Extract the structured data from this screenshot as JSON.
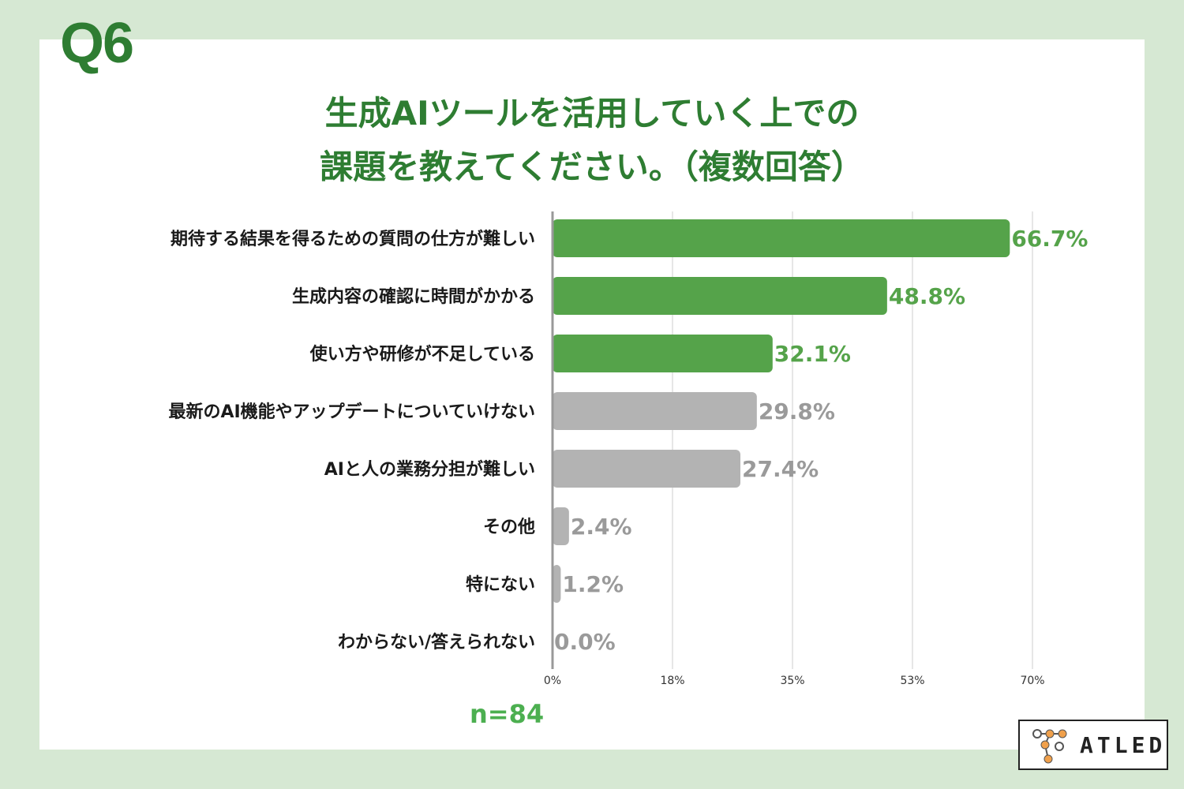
{
  "header": {
    "question_number": "Q6",
    "title_line1": "生成AIツールを活用していく上での",
    "title_line2": "課題を教えてください。（複数回答）"
  },
  "footer": {
    "sample_size": "n=84",
    "logo_text": "ATLED"
  },
  "chart_data": {
    "type": "bar",
    "orientation": "horizontal",
    "categories": [
      "期待する結果を得るための質問の仕方が難しい",
      "生成内容の確認に時間がかかる",
      "使い方や研修が不足している",
      "最新のAI機能やアップデートについていけない",
      "AIと人の業務分担が難しい",
      "その他",
      "特にない",
      "わからない/答えられない"
    ],
    "values": [
      66.7,
      48.8,
      32.1,
      29.8,
      27.4,
      2.4,
      1.2,
      0.0
    ],
    "value_labels": [
      "66.7%",
      "48.8%",
      "32.1%",
      "29.8%",
      "27.4%",
      "2.4%",
      "1.2%",
      "0.0%"
    ],
    "highlight_count": 3,
    "xlim": [
      0,
      70
    ],
    "ticks": [
      0,
      17.5,
      35,
      52.5,
      70
    ],
    "tick_labels": [
      "0%",
      "18%",
      "35%",
      "53%",
      "70%"
    ],
    "grid": true,
    "colors": {
      "highlight_bar": "#55a34a",
      "highlight_label": "#55a34a",
      "other_bar": "#b3b3b3",
      "other_label": "#9a9a9a",
      "grid": "#cccccc",
      "axis": "#999999"
    }
  }
}
